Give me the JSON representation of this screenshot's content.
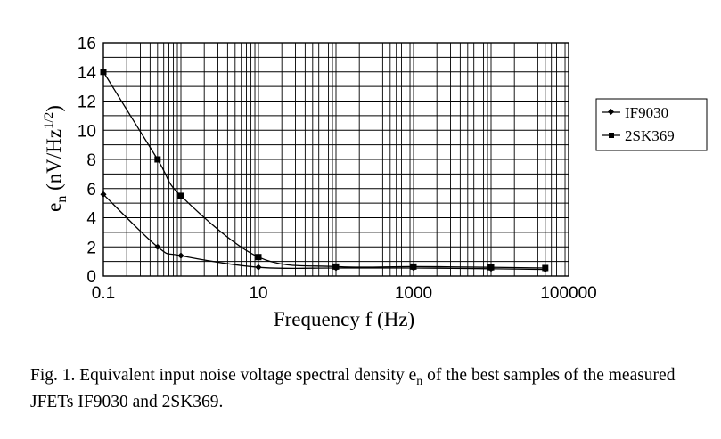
{
  "chart_data": {
    "type": "line",
    "xscale": "log",
    "xlim": [
      0.1,
      100000
    ],
    "ylim": [
      0,
      16
    ],
    "yticks": [
      "0",
      "2",
      "4",
      "6",
      "8",
      "10",
      "12",
      "14",
      "16"
    ],
    "xticks": [
      "0.1",
      "10",
      "1000",
      "100000"
    ],
    "xlabel": "Frequency f (Hz)",
    "ylabel_main": "e",
    "ylabel_sub": "n",
    "ylabel_unit": " (nV/Hz",
    "ylabel_sup": "1/2",
    "ylabel_close": ")",
    "grid": true,
    "legend_position": "right",
    "series": [
      {
        "name": "IF9030",
        "marker": "diamond",
        "x": [
          0.1,
          0.5,
          1,
          10,
          100,
          1000,
          10000,
          50000
        ],
        "y": [
          5.6,
          2.0,
          1.4,
          0.6,
          0.55,
          0.55,
          0.5,
          0.45
        ]
      },
      {
        "name": "2SK369",
        "marker": "square",
        "x": [
          0.1,
          0.5,
          1,
          10,
          100,
          1000,
          10000,
          50000
        ],
        "y": [
          14.0,
          8.0,
          5.5,
          1.3,
          0.65,
          0.65,
          0.6,
          0.55
        ]
      }
    ]
  },
  "caption": {
    "prefix": "Fig. 1.   Equivalent input noise voltage spectral density ",
    "symbol": "e",
    "symbol_sub": "n",
    "suffix": " of the best samples of the measured JFETs IF9030 and 2SK369."
  }
}
